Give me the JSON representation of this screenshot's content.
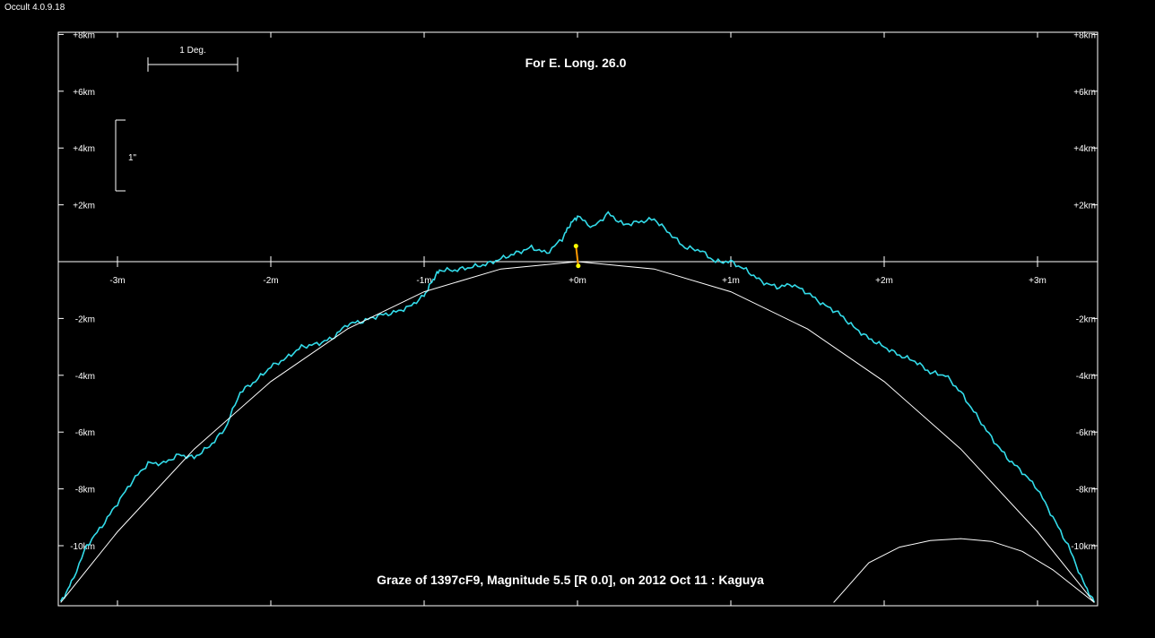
{
  "app": {
    "title": "Occult 4.0.9.18"
  },
  "chart_data": {
    "type": "line",
    "title": "For E. Long. 26.0",
    "footer": "Graze of  1397cF9,  Magnitude 5.5 [R 0.0],  on 2012 Oct 11  :  Kaguya",
    "scale_bars": {
      "horizontal_label": "1 Deg.",
      "vertical_label": "1\""
    },
    "x_axis": {
      "unit": "m",
      "xlim": [
        -3.37,
        3.37
      ],
      "ticks": [
        -3,
        -2,
        -1,
        0,
        1,
        2,
        3
      ],
      "tick_labels": [
        "-3m",
        "-2m",
        "-1m",
        "+0m",
        "+1m",
        "+2m",
        "+3m"
      ]
    },
    "y_axis": {
      "unit": "km",
      "ylim": [
        -12,
        8
      ],
      "ticks": [
        8,
        6,
        4,
        2,
        -2,
        -4,
        -6,
        -8,
        -10
      ],
      "tick_labels": [
        "+8km",
        "+6km",
        "+4km",
        "+2km",
        "-2km",
        "-4km",
        "-6km",
        "-8km",
        "-10km"
      ]
    },
    "colors": {
      "profile": "#33dcea",
      "limb": "#ffffff",
      "axis": "#ffffff",
      "marker_line": "#ff9900",
      "marker_points": "#ffff00"
    },
    "series": [
      {
        "kind": "lunar-limb-profile",
        "x": [
          -3.37,
          -3.3,
          -3.2,
          -3.1,
          -3.0,
          -2.9,
          -2.8,
          -2.7,
          -2.6,
          -2.5,
          -2.4,
          -2.3,
          -2.2,
          -2.1,
          -2.0,
          -1.9,
          -1.8,
          -1.7,
          -1.6,
          -1.5,
          -1.4,
          -1.3,
          -1.2,
          -1.1,
          -1.0,
          -0.95,
          -0.9,
          -0.8,
          -0.7,
          -0.6,
          -0.5,
          -0.4,
          -0.3,
          -0.2,
          -0.1,
          -0.05,
          0.0,
          0.1,
          0.2,
          0.3,
          0.4,
          0.5,
          0.6,
          0.7,
          0.8,
          0.9,
          1.0,
          1.1,
          1.2,
          1.3,
          1.4,
          1.5,
          1.6,
          1.7,
          1.8,
          1.9,
          2.0,
          2.1,
          2.2,
          2.3,
          2.4,
          2.5,
          2.6,
          2.7,
          2.8,
          2.9,
          3.0,
          3.1,
          3.2,
          3.3,
          3.37
        ],
        "y": [
          -12.0,
          -11.3,
          -10.0,
          -9.3,
          -8.5,
          -7.7,
          -7.1,
          -7.1,
          -6.8,
          -6.9,
          -6.5,
          -5.9,
          -4.6,
          -4.2,
          -3.7,
          -3.4,
          -3.0,
          -2.9,
          -2.7,
          -2.2,
          -2.1,
          -1.9,
          -1.8,
          -1.6,
          -1.2,
          -0.7,
          -0.3,
          -0.3,
          -0.2,
          -0.1,
          0.1,
          0.3,
          0.5,
          0.3,
          0.8,
          1.3,
          1.6,
          1.2,
          1.7,
          1.3,
          1.4,
          1.5,
          1.0,
          0.5,
          0.4,
          0.0,
          0.0,
          -0.3,
          -0.7,
          -0.9,
          -0.8,
          -1.1,
          -1.5,
          -1.8,
          -2.3,
          -2.7,
          -3.0,
          -3.3,
          -3.5,
          -3.9,
          -4.0,
          -4.6,
          -5.4,
          -6.2,
          -6.9,
          -7.4,
          -8.0,
          -9.0,
          -10.0,
          -11.3,
          -12.0
        ]
      },
      {
        "kind": "mean-limb",
        "x": [
          -3.37,
          -3.0,
          -2.5,
          -2.0,
          -1.5,
          -1.0,
          -0.5,
          0.0,
          0.5,
          1.0,
          1.5,
          2.0,
          2.5,
          3.0,
          3.37
        ],
        "y": [
          -12.0,
          -9.51,
          -6.6,
          -4.22,
          -2.37,
          -1.06,
          -0.26,
          0.0,
          -0.26,
          -1.06,
          -2.37,
          -4.22,
          -6.6,
          -9.51,
          -12.0
        ]
      },
      {
        "kind": "secondary-limb",
        "x": [
          1.67,
          1.9,
          2.1,
          2.3,
          2.5,
          2.7,
          2.9,
          3.1,
          3.3,
          3.37
        ],
        "y": [
          -12.0,
          -10.6,
          -10.05,
          -9.82,
          -9.75,
          -9.85,
          -10.2,
          -10.85,
          -11.7,
          -12.0
        ]
      }
    ],
    "event_marker": {
      "x": [
        -0.01,
        0.005
      ],
      "y": [
        0.55,
        -0.15
      ]
    }
  }
}
